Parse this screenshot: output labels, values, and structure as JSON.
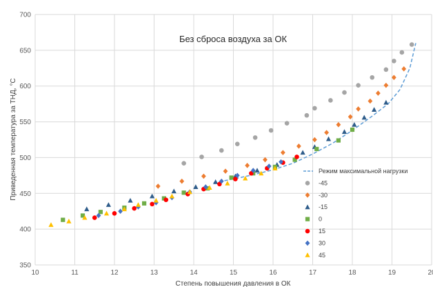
{
  "chart_data": {
    "type": "scatter",
    "title": "Без сброса воздуха за ОК",
    "xlabel": "Степень повышения давления в ОК",
    "ylabel": "Приведенная температура за ТНД, °С",
    "xlim": [
      10,
      20
    ],
    "ylim": [
      350,
      700
    ],
    "xticks": [
      "10",
      "11",
      "12",
      "13",
      "14",
      "15",
      "16",
      "17",
      "18",
      "19",
      "20"
    ],
    "yticks": [
      "350",
      "400",
      "450",
      "500",
      "550",
      "600",
      "650",
      "700"
    ],
    "grid": "horizontal and vertical",
    "legend_position": "right",
    "line_series": {
      "name": "Режим максимальной нагрузки",
      "color": "#5B9BD5",
      "style": "dashed",
      "points": [
        [
          14.5,
          465
        ],
        [
          15,
          470
        ],
        [
          15.5,
          476
        ],
        [
          16,
          483
        ],
        [
          16.5,
          492
        ],
        [
          17,
          505
        ],
        [
          17.5,
          520
        ],
        [
          18,
          538
        ],
        [
          18.5,
          558
        ],
        [
          18.9,
          575
        ],
        [
          19.2,
          595
        ],
        [
          19.45,
          625
        ],
        [
          19.6,
          660
        ]
      ]
    },
    "series": [
      {
        "name": "-45",
        "color": "#A5A5A5",
        "marker": "circle",
        "points": [
          [
            13.75,
            492
          ],
          [
            14.2,
            501
          ],
          [
            14.7,
            510
          ],
          [
            15.1,
            519
          ],
          [
            15.55,
            528
          ],
          [
            15.95,
            538
          ],
          [
            16.35,
            548
          ],
          [
            16.85,
            559
          ],
          [
            17.05,
            569
          ],
          [
            17.45,
            580
          ],
          [
            17.8,
            591
          ],
          [
            18.15,
            601
          ],
          [
            18.5,
            612
          ],
          [
            18.85,
            623
          ],
          [
            19.05,
            635
          ],
          [
            19.25,
            647
          ],
          [
            19.5,
            658
          ]
        ]
      },
      {
        "name": "-30",
        "color": "#ED7D31",
        "marker": "diamond",
        "points": [
          [
            13.1,
            460
          ],
          [
            13.7,
            467
          ],
          [
            14.25,
            474
          ],
          [
            14.8,
            481
          ],
          [
            15.35,
            489
          ],
          [
            15.8,
            497
          ],
          [
            16.25,
            507
          ],
          [
            16.65,
            516
          ],
          [
            17.05,
            525
          ],
          [
            17.35,
            535
          ],
          [
            17.65,
            546
          ],
          [
            17.95,
            557
          ],
          [
            18.15,
            568
          ],
          [
            18.45,
            579
          ],
          [
            18.65,
            590
          ],
          [
            18.85,
            601
          ],
          [
            19.05,
            612
          ],
          [
            19.3,
            624
          ]
        ]
      },
      {
        "name": "-15",
        "color": "#2E5C8A",
        "marker": "triangle",
        "points": [
          [
            11.3,
            428
          ],
          [
            11.85,
            434
          ],
          [
            12.4,
            440
          ],
          [
            12.95,
            446
          ],
          [
            13.5,
            453
          ],
          [
            14.05,
            459
          ],
          [
            14.55,
            466
          ],
          [
            15.05,
            474
          ],
          [
            15.6,
            482
          ],
          [
            16.1,
            490
          ],
          [
            16.75,
            507
          ],
          [
            17.05,
            515
          ],
          [
            17.4,
            526
          ],
          [
            17.8,
            536
          ],
          [
            18.05,
            546
          ],
          [
            18.3,
            556
          ],
          [
            18.55,
            567
          ],
          [
            18.85,
            577
          ]
        ]
      },
      {
        "name": "0",
        "color": "#70AD47",
        "marker": "square",
        "points": [
          [
            10.7,
            413
          ],
          [
            11.2,
            419
          ],
          [
            11.65,
            424
          ],
          [
            12.25,
            430
          ],
          [
            12.75,
            436
          ],
          [
            13.25,
            443
          ],
          [
            13.75,
            451
          ],
          [
            14.35,
            457
          ],
          [
            14.95,
            472
          ],
          [
            15.5,
            478
          ],
          [
            16.05,
            487
          ],
          [
            16.55,
            497
          ],
          [
            17.1,
            512
          ],
          [
            17.65,
            524
          ],
          [
            18.0,
            539
          ]
        ]
      },
      {
        "name": "15",
        "color": "#FF0000",
        "marker": "circle",
        "points": [
          [
            11.5,
            416
          ],
          [
            12.0,
            422
          ],
          [
            12.5,
            429
          ],
          [
            12.95,
            435
          ],
          [
            13.3,
            441
          ],
          [
            13.85,
            449
          ],
          [
            14.25,
            456
          ],
          [
            14.65,
            463
          ],
          [
            15.05,
            470
          ],
          [
            15.45,
            478
          ],
          [
            15.85,
            485
          ],
          [
            16.25,
            493
          ],
          [
            16.6,
            501
          ]
        ]
      },
      {
        "name": "30",
        "color": "#4472C4",
        "marker": "diamond",
        "points": [
          [
            11.6,
            419
          ],
          [
            12.15,
            425
          ],
          [
            12.6,
            431
          ],
          [
            13.05,
            437
          ],
          [
            13.45,
            444
          ],
          [
            13.9,
            452
          ],
          [
            14.3,
            459
          ],
          [
            14.7,
            467
          ],
          [
            15.1,
            475
          ],
          [
            15.5,
            482
          ],
          [
            15.9,
            488
          ],
          [
            16.2,
            494
          ]
        ]
      },
      {
        "name": "45",
        "color": "#FFC000",
        "marker": "triangle",
        "points": [
          [
            10.4,
            406
          ],
          [
            10.85,
            411
          ],
          [
            11.25,
            416
          ],
          [
            11.8,
            422
          ],
          [
            12.25,
            428
          ],
          [
            12.6,
            434
          ],
          [
            13.05,
            440
          ],
          [
            13.45,
            446
          ],
          [
            13.9,
            452
          ],
          [
            14.4,
            458
          ],
          [
            14.85,
            464
          ],
          [
            15.3,
            471
          ],
          [
            15.7,
            478
          ],
          [
            16.05,
            485
          ]
        ]
      }
    ]
  }
}
